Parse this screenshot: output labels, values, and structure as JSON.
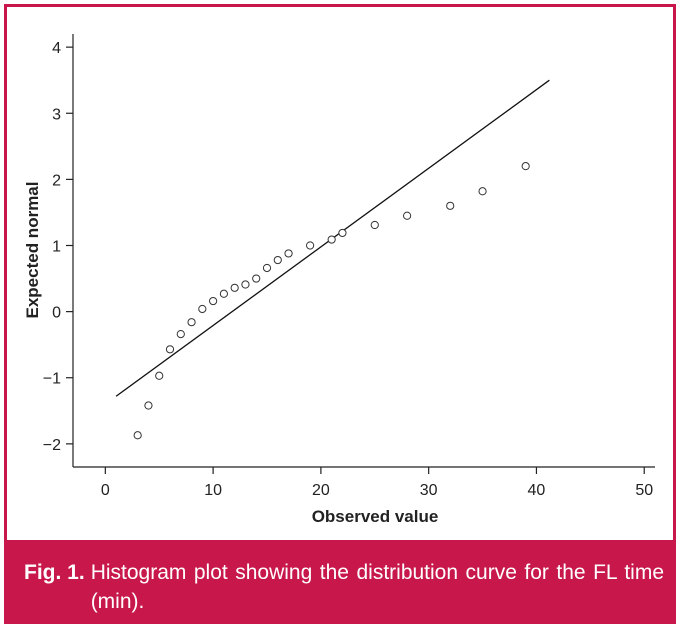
{
  "theme": {
    "accent": "#c8174b",
    "axis": "#222222",
    "marker_edge": "#333333"
  },
  "chart_data": {
    "type": "scatter",
    "title": "",
    "xlabel": "Observed value",
    "ylabel": "Expected normal",
    "xlim": [
      -3,
      51
    ],
    "ylim": [
      -2.35,
      4.35
    ],
    "xticks": [
      0,
      10,
      20,
      30,
      40,
      50
    ],
    "yticks": [
      -2,
      -1,
      0,
      1,
      2,
      3,
      4
    ],
    "ytick_labels": [
      "−2",
      "−1",
      "0",
      "1",
      "2",
      "3",
      "4"
    ],
    "points": [
      {
        "x": 3,
        "y": -1.87
      },
      {
        "x": 4,
        "y": -1.42
      },
      {
        "x": 5,
        "y": -0.97
      },
      {
        "x": 6,
        "y": -0.57
      },
      {
        "x": 7,
        "y": -0.34
      },
      {
        "x": 8,
        "y": -0.16
      },
      {
        "x": 9,
        "y": 0.04
      },
      {
        "x": 10,
        "y": 0.16
      },
      {
        "x": 11,
        "y": 0.27
      },
      {
        "x": 12,
        "y": 0.36
      },
      {
        "x": 13,
        "y": 0.41
      },
      {
        "x": 14,
        "y": 0.5
      },
      {
        "x": 15,
        "y": 0.66
      },
      {
        "x": 16,
        "y": 0.78
      },
      {
        "x": 17,
        "y": 0.88
      },
      {
        "x": 19,
        "y": 1.0
      },
      {
        "x": 21,
        "y": 1.09
      },
      {
        "x": 22,
        "y": 1.19
      },
      {
        "x": 25,
        "y": 1.31
      },
      {
        "x": 28,
        "y": 1.45
      },
      {
        "x": 32,
        "y": 1.6
      },
      {
        "x": 35,
        "y": 1.82
      },
      {
        "x": 39,
        "y": 2.2
      }
    ],
    "reference_line": {
      "x": [
        1,
        41.2
      ],
      "y": [
        -1.28,
        3.5
      ]
    }
  },
  "caption": {
    "label": "Fig. 1.",
    "text": "Histogram plot showing the distribution curve for the FL time (min)."
  }
}
